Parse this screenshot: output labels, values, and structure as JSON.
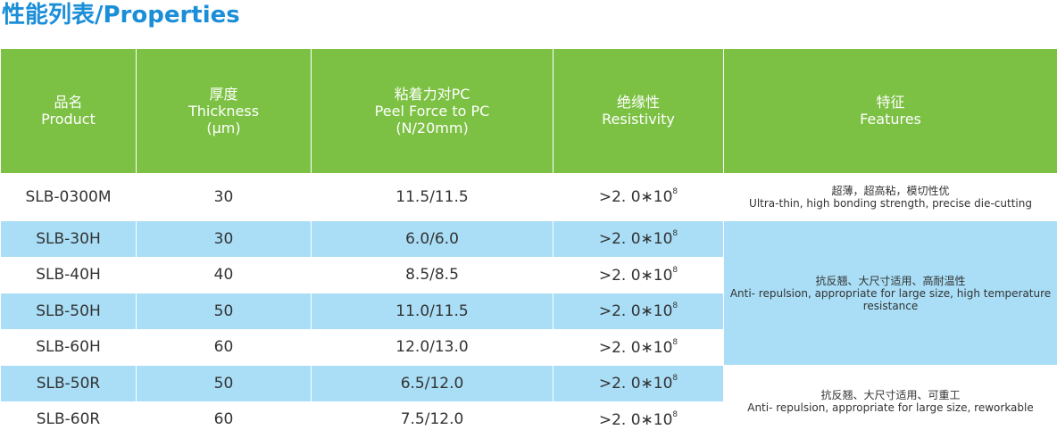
{
  "header": {
    "title": "性能列表/Properties"
  },
  "table": {
    "columns": [
      [
        "品名",
        "Product"
      ],
      [
        "厚度",
        "Thickness",
        "(μm)"
      ],
      [
        "粘着力对PC",
        "Peel Force to PC",
        "(N/20mm)"
      ],
      [
        "绝缘性",
        "Resistivity"
      ],
      [
        "特征",
        "Features"
      ]
    ],
    "rows": [
      {
        "product": "SLB-0300M",
        "thickness": "30",
        "peel": "11.5/11.5",
        "resistivity": {
          "base": ">2. 0∗10",
          "exp": "8"
        }
      },
      {
        "product": "SLB-30H",
        "thickness": "30",
        "peel": "6.0/6.0",
        "resistivity": {
          "base": ">2. 0∗10",
          "exp": "8"
        }
      },
      {
        "product": "SLB-40H",
        "thickness": "40",
        "peel": "8.5/8.5",
        "resistivity": {
          "base": ">2. 0∗10",
          "exp": "8"
        }
      },
      {
        "product": "SLB-50H",
        "thickness": "50",
        "peel": "11.0/11.5",
        "resistivity": {
          "base": ">2. 0∗10",
          "exp": "8"
        }
      },
      {
        "product": "SLB-60H",
        "thickness": "60",
        "peel": "12.0/13.0",
        "resistivity": {
          "base": ">2. 0∗10",
          "exp": "8"
        }
      },
      {
        "product": "SLB-50R",
        "thickness": "50",
        "peel": "6.5/12.0",
        "resistivity": {
          "base": ">2. 0∗10",
          "exp": "8"
        }
      },
      {
        "product": "SLB-60R",
        "thickness": "60",
        "peel": "7.5/12.0",
        "resistivity": {
          "base": ">2. 0∗10",
          "exp": "8"
        }
      }
    ],
    "features": [
      {
        "zh": "超薄，超高粘，模切性优",
        "en": "Ultra-thin, high bonding strength, precise die-cutting"
      },
      {
        "zh": "抗反翘、大尺寸适用、高耐温性",
        "en": "Anti- repulsion, appropriate for large size, high temperature resistance"
      },
      {
        "zh": "抗反翘、大尺寸适用、可重工",
        "en": "Anti- repulsion, appropriate for large size, reworkable"
      }
    ]
  }
}
